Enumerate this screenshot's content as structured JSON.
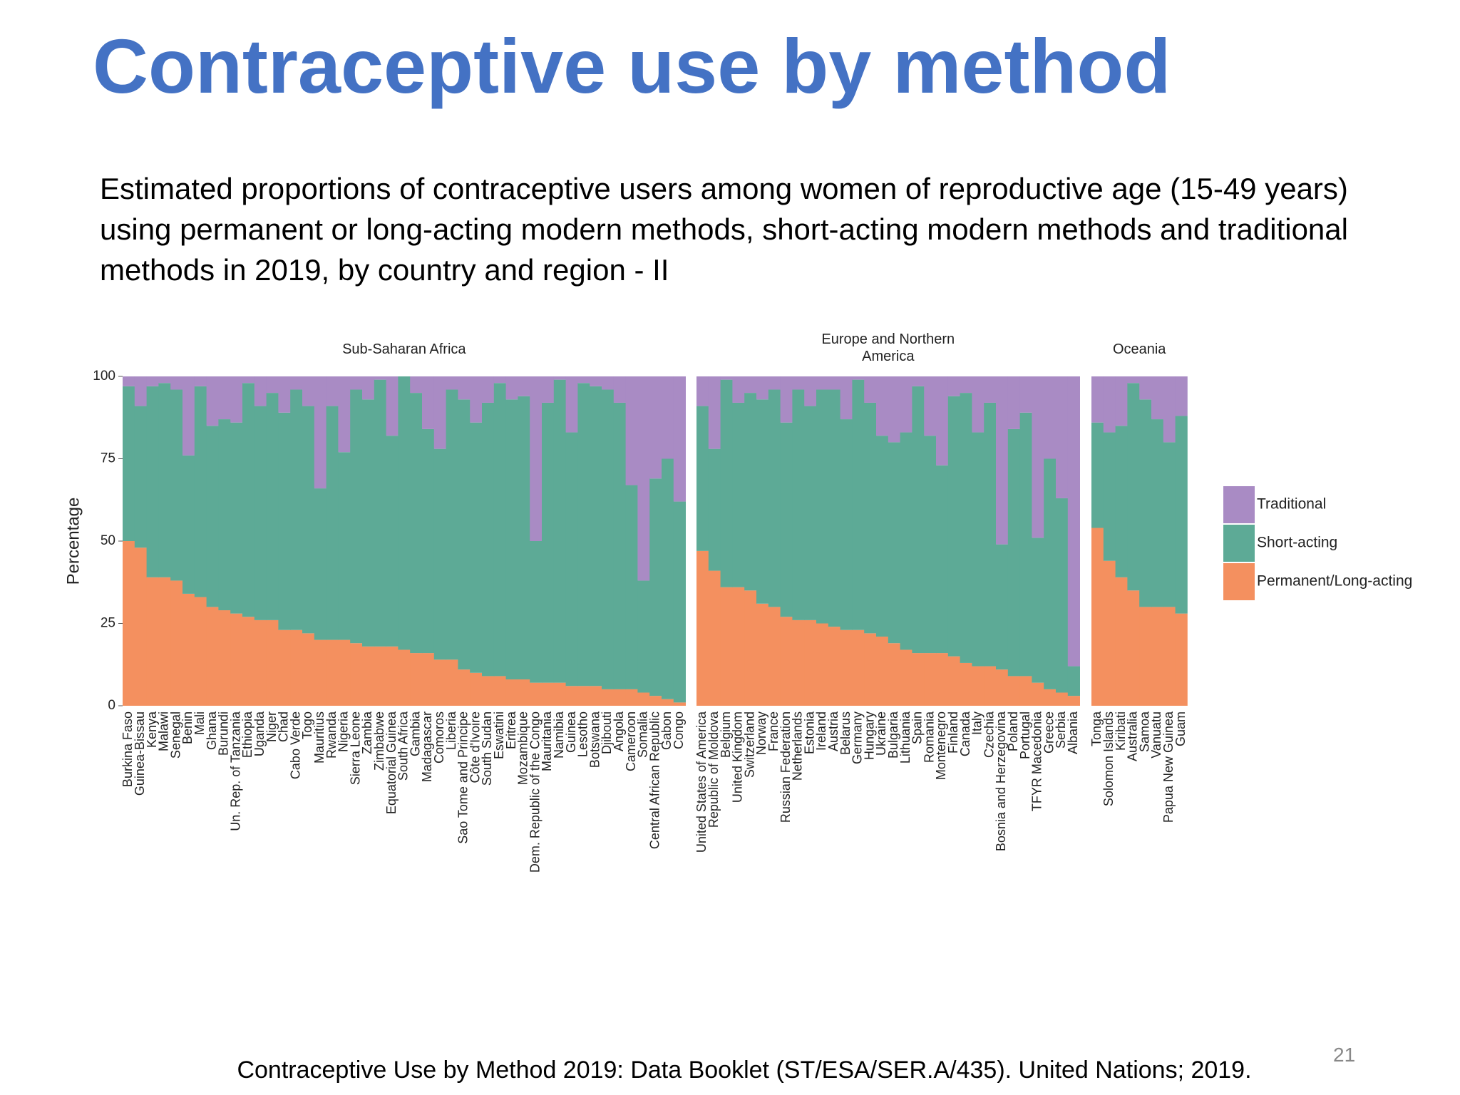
{
  "title": "Contraceptive use by method",
  "subtitle": "Estimated proportions of contraceptive users among women of reproductive age (15-49 years) using permanent or long-acting modern methods, short-acting modern methods and traditional methods in 2019, by country and region - II",
  "source": "Contraceptive Use by Method 2019: Data Booklet (ST/ESA/SER.A/435). United Nations; 2019.",
  "page_number": "21",
  "chart_data": [
    {
      "type": "bar",
      "stacked": true,
      "title": "Sub-Saharan Africa",
      "ylabel": "Percentage",
      "ylim": [
        0,
        100
      ],
      "yticks": [
        0,
        25,
        50,
        75,
        100
      ],
      "legend": "right",
      "categories": [
        "Burkina Faso",
        "Guinea-Bissau",
        "Kenya",
        "Malawi",
        "Senegal",
        "Benin",
        "Mali",
        "Ghana",
        "Burundi",
        "Un. Rep. of Tanzania",
        "Ethiopia",
        "Uganda",
        "Niger",
        "Chad",
        "Cabo Verde",
        "Togo",
        "Mauritius",
        "Rwanda",
        "Nigeria",
        "Sierra Leone",
        "Zambia",
        "Zimbabwe",
        "Equatorial Guinea",
        "South Africa",
        "Gambia",
        "Madagascar",
        "Comoros",
        "Liberia",
        "Sao Tome and Principe",
        "Côte d'Ivoire",
        "South Sudan",
        "Eswatini",
        "Eritrea",
        "Mozambique",
        "Dem. Republic of the Congo",
        "Mauritania",
        "Namibia",
        "Guinea",
        "Lesotho",
        "Botswana",
        "Djibouti",
        "Angola",
        "Cameroon",
        "Somalia",
        "Central African Republic",
        "Gabon",
        "Congo"
      ],
      "series": [
        {
          "name": "Permanent/Long-acting",
          "color": "#f4905f",
          "values": [
            50,
            48,
            39,
            39,
            38,
            34,
            33,
            30,
            29,
            28,
            27,
            26,
            26,
            23,
            23,
            22,
            20,
            20,
            20,
            19,
            18,
            18,
            18,
            17,
            16,
            16,
            14,
            14,
            11,
            10,
            9,
            9,
            8,
            8,
            7,
            7,
            7,
            6,
            6,
            6,
            5,
            5,
            5,
            4,
            3,
            2,
            1
          ]
        },
        {
          "name": "Short-acting",
          "color": "#5daa96",
          "values": [
            47,
            43,
            58,
            59,
            58,
            42,
            64,
            55,
            58,
            58,
            71,
            65,
            69,
            66,
            73,
            69,
            46,
            71,
            57,
            77,
            75,
            81,
            64,
            83,
            79,
            68,
            64,
            82,
            82,
            76,
            83,
            89,
            85,
            86,
            43,
            85,
            92,
            77,
            92,
            91,
            91,
            87,
            62,
            34,
            66,
            73,
            61
          ]
        },
        {
          "name": "Traditional",
          "color": "#a98bc4",
          "values": [
            3,
            9,
            3,
            2,
            4,
            24,
            3,
            15,
            13,
            14,
            2,
            9,
            5,
            11,
            4,
            9,
            34,
            9,
            23,
            4,
            7,
            1,
            18,
            0,
            5,
            16,
            22,
            4,
            7,
            14,
            8,
            2,
            7,
            6,
            50,
            8,
            1,
            17,
            2,
            3,
            4,
            8,
            33,
            62,
            31,
            25,
            38
          ]
        }
      ]
    },
    {
      "type": "bar",
      "stacked": true,
      "title": "Europe and Northern America",
      "ylim": [
        0,
        100
      ],
      "categories": [
        "United States of America",
        "Republic of Moldova",
        "Belgium",
        "United Kingdom",
        "Switzerland",
        "Norway",
        "France",
        "Russian Federation",
        "Netherlands",
        "Estonia",
        "Ireland",
        "Austria",
        "Belarus",
        "Germany",
        "Hungary",
        "Ukraine",
        "Bulgaria",
        "Lithuania",
        "Spain",
        "Romania",
        "Montenegro",
        "Finland",
        "Canada",
        "Italy",
        "Czechia",
        "Bosnia and Herzegovina",
        "Poland",
        "Portugal",
        "TFYR Macedonia",
        "Greece",
        "Serbia",
        "Albania"
      ],
      "series": [
        {
          "color": "#f4905f",
          "values": [
            47,
            41,
            36,
            36,
            35,
            31,
            30,
            27,
            26,
            26,
            25,
            24,
            23,
            23,
            22,
            21,
            19,
            17,
            16,
            16,
            16,
            15,
            13,
            12,
            12,
            11,
            9,
            9,
            7,
            5,
            4,
            3
          ]
        },
        {
          "color": "#5daa96",
          "values": [
            44,
            37,
            63,
            56,
            60,
            62,
            66,
            59,
            70,
            65,
            71,
            72,
            64,
            76,
            70,
            61,
            61,
            66,
            81,
            66,
            57,
            79,
            82,
            71,
            80,
            38,
            75,
            80,
            44,
            70,
            59,
            9
          ]
        },
        {
          "color": "#a98bc4",
          "values": [
            9,
            22,
            1,
            8,
            5,
            7,
            4,
            14,
            4,
            9,
            4,
            4,
            13,
            1,
            8,
            18,
            20,
            17,
            3,
            18,
            27,
            6,
            5,
            17,
            8,
            51,
            16,
            11,
            49,
            25,
            37,
            88
          ]
        }
      ]
    },
    {
      "type": "bar",
      "stacked": true,
      "title": "Oceania",
      "ylim": [
        0,
        100
      ],
      "categories": [
        "Tonga",
        "Solomon Islands",
        "Kiribati",
        "Australia",
        "Samoa",
        "Vanuatu",
        "Papua New Guinea",
        "Guam"
      ],
      "series": [
        {
          "color": "#f4905f",
          "values": [
            54,
            44,
            39,
            35,
            30,
            30,
            30,
            28
          ]
        },
        {
          "color": "#5daa96",
          "values": [
            32,
            39,
            46,
            63,
            63,
            57,
            50,
            60
          ]
        },
        {
          "color": "#a98bc4",
          "values": [
            14,
            17,
            15,
            2,
            7,
            13,
            20,
            12
          ]
        }
      ]
    }
  ]
}
